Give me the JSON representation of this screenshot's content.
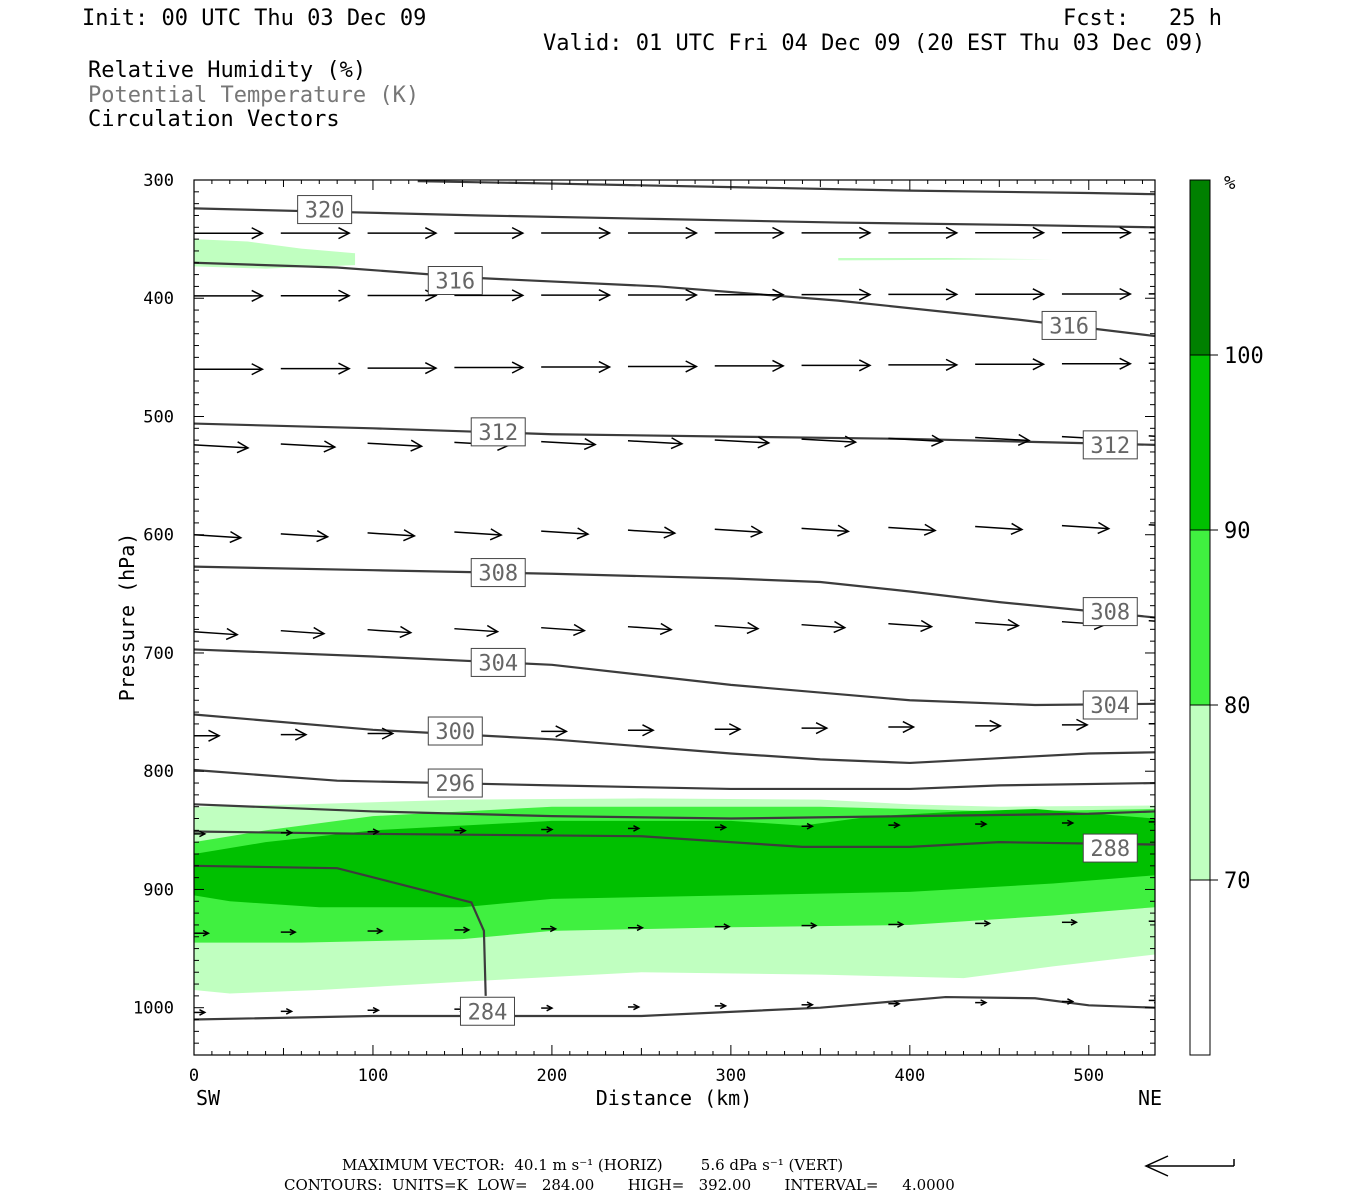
{
  "header": {
    "init": "Init: 00 UTC Thu 03 Dec 09",
    "fcst": "Fcst:   25 h",
    "valid": "Valid: 01 UTC Fri 04 Dec 09 (20 EST Thu 03 Dec 09)",
    "fields": [
      "Relative Humidity (%)",
      "Potential Temperature (K)",
      "Circulation Vectors"
    ]
  },
  "footer": {
    "max_vector": "MAXIMUM VECTOR:  40.1 m s⁻¹ (HORIZ)        5.6 dPa s⁻¹ (VERT)",
    "contours": "CONTOURS:  UNITS=K  LOW=   284.00       HIGH=   392.00       INTERVAL=     4.0000"
  },
  "colors": {
    "rh70": "#c0ffc0",
    "rh80": "#40f040",
    "rh90": "#00c000",
    "rh100": "#008000",
    "contour": "#3c3c3c",
    "theta_label_text": "#666666"
  },
  "chart_data": {
    "type": "cross-section",
    "xlabel": "Distance (km)",
    "ylabel": "Pressure (hPa)",
    "xlim": [
      0,
      537
    ],
    "ylim": [
      1040,
      300
    ],
    "x_ticks": [
      0,
      100,
      200,
      300,
      400,
      500
    ],
    "y_ticks": [
      300,
      400,
      500,
      600,
      700,
      800,
      900,
      1000
    ],
    "x_end_labels": [
      "SW",
      "NE"
    ],
    "colorbar": {
      "unit": "%",
      "levels": [
        70,
        80,
        90,
        100
      ],
      "colors": [
        "#ffffff",
        "#c0ffc0",
        "#40f040",
        "#00c000",
        "#008000"
      ]
    },
    "rh_regions": [
      {
        "level": 70,
        "top": [
          [
            0,
            350
          ],
          [
            30,
            352
          ],
          [
            60,
            358
          ],
          [
            90,
            362
          ],
          [
            90,
            372
          ],
          [
            40,
            375
          ],
          [
            0,
            373
          ]
        ]
      },
      {
        "level": 70,
        "top": [
          [
            360,
            366
          ],
          [
            420,
            366
          ],
          [
            480,
            367
          ],
          [
            360,
            368
          ]
        ]
      },
      {
        "level": 70,
        "top": [
          [
            0,
            830
          ],
          [
            60,
            828
          ],
          [
            150,
            824
          ],
          [
            250,
            823
          ],
          [
            350,
            824
          ],
          [
            400,
            828
          ],
          [
            450,
            830
          ],
          [
            537,
            829
          ]
        ],
        "bottom": [
          [
            537,
            955
          ],
          [
            480,
            965
          ],
          [
            430,
            975
          ],
          [
            350,
            972
          ],
          [
            250,
            970
          ],
          [
            150,
            978
          ],
          [
            70,
            985
          ],
          [
            20,
            988
          ],
          [
            0,
            985
          ]
        ]
      },
      {
        "level": 80,
        "top": [
          [
            0,
            860
          ],
          [
            40,
            850
          ],
          [
            100,
            838
          ],
          [
            200,
            830
          ],
          [
            300,
            830
          ],
          [
            350,
            830
          ],
          [
            400,
            832
          ],
          [
            450,
            834
          ],
          [
            537,
            832
          ]
        ],
        "bottom": [
          [
            537,
            915
          ],
          [
            480,
            922
          ],
          [
            400,
            930
          ],
          [
            300,
            932
          ],
          [
            200,
            935
          ],
          [
            150,
            942
          ],
          [
            60,
            945
          ],
          [
            0,
            945
          ]
        ]
      },
      {
        "level": 90,
        "top": [
          [
            0,
            870
          ],
          [
            40,
            860
          ],
          [
            100,
            850
          ],
          [
            200,
            842
          ],
          [
            300,
            842
          ],
          [
            340,
            846
          ],
          [
            380,
            838
          ],
          [
            430,
            834
          ],
          [
            470,
            832
          ],
          [
            537,
            840
          ]
        ],
        "bottom": [
          [
            537,
            888
          ],
          [
            480,
            895
          ],
          [
            400,
            902
          ],
          [
            300,
            905
          ],
          [
            200,
            908
          ],
          [
            150,
            915
          ],
          [
            70,
            915
          ],
          [
            20,
            910
          ],
          [
            0,
            905
          ]
        ]
      }
    ],
    "theta_contours": [
      {
        "value": 320,
        "points": [
          [
            0,
            324
          ],
          [
            80,
            327
          ],
          [
            160,
            330
          ],
          [
            260,
            333
          ],
          [
            360,
            336
          ],
          [
            460,
            338
          ],
          [
            537,
            340
          ]
        ]
      },
      {
        "value": 320,
        "points": [
          [
            125,
            301
          ],
          [
            200,
            303
          ],
          [
            300,
            306
          ],
          [
            400,
            309
          ],
          [
            500,
            311
          ],
          [
            537,
            312
          ]
        ]
      },
      {
        "value": 316,
        "points": [
          [
            0,
            370
          ],
          [
            80,
            374
          ],
          [
            160,
            383
          ],
          [
            260,
            390
          ],
          [
            360,
            402
          ],
          [
            460,
            418
          ],
          [
            537,
            432
          ]
        ]
      },
      {
        "value": 312,
        "points": [
          [
            0,
            506
          ],
          [
            100,
            510
          ],
          [
            200,
            515
          ],
          [
            300,
            517
          ],
          [
            400,
            519
          ],
          [
            537,
            524
          ]
        ]
      },
      {
        "value": 308,
        "points": [
          [
            0,
            627
          ],
          [
            100,
            630
          ],
          [
            200,
            633
          ],
          [
            300,
            637
          ],
          [
            350,
            640
          ],
          [
            400,
            648
          ],
          [
            450,
            657
          ],
          [
            537,
            670
          ]
        ]
      },
      {
        "value": 304,
        "points": [
          [
            0,
            697
          ],
          [
            100,
            703
          ],
          [
            200,
            710
          ],
          [
            300,
            727
          ],
          [
            400,
            740
          ],
          [
            470,
            744
          ],
          [
            537,
            743
          ]
        ]
      },
      {
        "value": 300,
        "points": [
          [
            0,
            752
          ],
          [
            100,
            765
          ],
          [
            200,
            773
          ],
          [
            300,
            785
          ],
          [
            350,
            790
          ],
          [
            400,
            793
          ],
          [
            450,
            789
          ],
          [
            500,
            785
          ],
          [
            537,
            784
          ]
        ]
      },
      {
        "value": 296,
        "points": [
          [
            0,
            799
          ],
          [
            80,
            808
          ],
          [
            200,
            812
          ],
          [
            300,
            815
          ],
          [
            400,
            815
          ],
          [
            450,
            812
          ],
          [
            537,
            810
          ]
        ]
      },
      {
        "value": 292,
        "points": [
          [
            0,
            828
          ],
          [
            100,
            834
          ],
          [
            200,
            838
          ],
          [
            300,
            840
          ],
          [
            400,
            838
          ],
          [
            500,
            836
          ],
          [
            537,
            834
          ]
        ]
      },
      {
        "value": 288,
        "points": [
          [
            0,
            851
          ],
          [
            100,
            853
          ],
          [
            250,
            855
          ],
          [
            340,
            864
          ],
          [
            400,
            864
          ],
          [
            450,
            860
          ],
          [
            537,
            862
          ]
        ]
      },
      {
        "value": 284,
        "points": [
          [
            0,
            1010
          ],
          [
            100,
            1007
          ],
          [
            250,
            1007
          ],
          [
            350,
            1000
          ],
          [
            420,
            991
          ],
          [
            470,
            992
          ],
          [
            500,
            998
          ],
          [
            537,
            1000
          ]
        ]
      },
      {
        "value": 0,
        "points": [
          [
            0,
            880
          ],
          [
            80,
            882
          ],
          [
            155,
            911
          ],
          [
            162,
            935
          ],
          [
            163,
            990
          ]
        ]
      }
    ],
    "theta_labels": [
      {
        "text": "320",
        "x": 73,
        "p": 325
      },
      {
        "text": "316",
        "x": 146,
        "p": 385
      },
      {
        "text": "316",
        "x": 489,
        "p": 423
      },
      {
        "text": "312",
        "x": 170,
        "p": 513
      },
      {
        "text": "312",
        "x": 512,
        "p": 524
      },
      {
        "text": "308",
        "x": 170,
        "p": 632
      },
      {
        "text": "308",
        "x": 512,
        "p": 665
      },
      {
        "text": "304",
        "x": 170,
        "p": 708
      },
      {
        "text": "304",
        "x": 512,
        "p": 744
      },
      {
        "text": "300",
        "x": 146,
        "p": 766
      },
      {
        "text": "296",
        "x": 146,
        "p": 810
      },
      {
        "text": "288",
        "x": 512,
        "p": 865
      },
      {
        "text": "284",
        "x": 164,
        "p": 1003
      }
    ],
    "vectors": {
      "x_positions": [
        0,
        48.5,
        97,
        145.5,
        194,
        242.5,
        291,
        339.5,
        388,
        436.5,
        485,
        533.5
      ],
      "rows": [
        {
          "p": 345,
          "len": 38,
          "dp": 0,
          "drift": -0.5
        },
        {
          "p": 398,
          "len": 38,
          "dp": 0,
          "drift": -2
        },
        {
          "p": 460,
          "len": 38,
          "dp": 0,
          "drift": -6
        },
        {
          "p": 524,
          "len": 30,
          "dp": 3,
          "drift": -9
        },
        {
          "p": 600,
          "len": 26,
          "dp": 3,
          "drift": -10
        },
        {
          "p": 682,
          "len": 24,
          "dp": 3,
          "drift": -11
        },
        {
          "p": 770,
          "len": 14,
          "dp": 0,
          "drift": -12
        },
        {
          "p": 853,
          "len": 6,
          "dp": 0,
          "drift": -12
        },
        {
          "p": 937,
          "len": 8,
          "dp": 0,
          "drift": -12
        },
        {
          "p": 1004,
          "len": 6,
          "dp": 0,
          "drift": -12
        }
      ]
    }
  }
}
